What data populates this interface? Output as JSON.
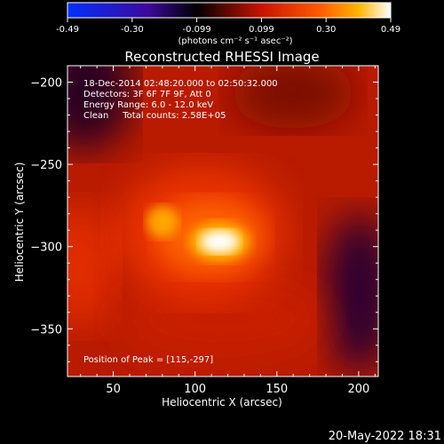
{
  "chart_data": {
    "type": "heatmap",
    "title": "Reconstructed RHESSI Image",
    "xlabel": "Heliocentric X (arcsec)",
    "ylabel": "Heliocentric Y (arcsec)",
    "xlim": [
      22,
      212
    ],
    "ylim": [
      -379,
      -190
    ],
    "x_ticks": [
      50,
      100,
      150,
      200
    ],
    "y_ticks": [
      -200,
      -250,
      -300,
      -350
    ],
    "colorbar": {
      "ticks": [
        "-0.49",
        "-0.30",
        "-0.099",
        "0.099",
        "0.30",
        "0.49"
      ],
      "range": [
        -0.49,
        0.49
      ],
      "units": "(photons cm⁻² s⁻¹ asec⁻²)"
    },
    "info_lines": [
      "18-Dec-2014 02:48:20.000 to 02:50:32.000",
      "Detectors: 3F 6F 7F 9F, Att 0",
      "Energy Range: 6.0 - 12.0 keV",
      "Clean     Total counts: 2.58E+05"
    ],
    "peak_label": "Position of Peak = [115,-297]",
    "peak": {
      "x": 115,
      "y": -297,
      "value": 0.49
    },
    "secondary_source": {
      "x": 80,
      "y": -285,
      "value": 0.31
    },
    "timestamp": "20-May-2022 18:31"
  }
}
